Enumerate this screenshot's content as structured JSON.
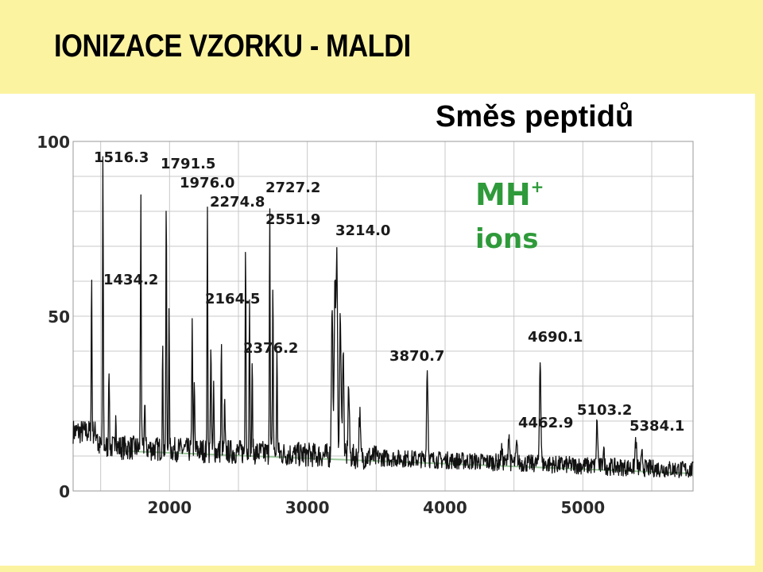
{
  "title": "IONIZACE VZORKU - MALDI",
  "subtitle": "Směs peptidů",
  "chart_data": {
    "type": "line",
    "xlim": [
      1300,
      5800
    ],
    "ylim": [
      0,
      100
    ],
    "x_ticks": [
      2000,
      3000,
      4000,
      5000
    ],
    "y_ticks": [
      0,
      50,
      100
    ],
    "xlabel": "",
    "ylabel": "",
    "grid": true,
    "line_color": "#111111",
    "grid_color": "#c8c8c8",
    "baseline_color": "#9cc79c",
    "annotation": {
      "line1": "MH",
      "sup": "+",
      "line2": "ions",
      "color": "#2e9a3a"
    },
    "peaks": [
      {
        "label": "1434.2",
        "x": 1434.2,
        "y": 58
      },
      {
        "label": "1516.3",
        "x": 1516.3,
        "y": 93
      },
      {
        "label": "1791.5",
        "x": 1791.5,
        "y": 88
      },
      {
        "label": "1976.0",
        "x": 1976.0,
        "y": 85
      },
      {
        "label": "2164.5",
        "x": 2164.5,
        "y": 52
      },
      {
        "label": "2274.8",
        "x": 2274.8,
        "y": 80
      },
      {
        "label": "2376.2",
        "x": 2376.2,
        "y": 42
      },
      {
        "label": "2551.9",
        "x": 2551.9,
        "y": 74
      },
      {
        "label": "2727.2",
        "x": 2727.2,
        "y": 83
      },
      {
        "label": "3214.0",
        "x": 3214.0,
        "y": 71
      },
      {
        "label": "3870.7",
        "x": 3870.7,
        "y": 35
      },
      {
        "label": "4462.9",
        "x": 4462.9,
        "y": 17
      },
      {
        "label": "4690.1",
        "x": 4690.1,
        "y": 39
      },
      {
        "label": "5103.2",
        "x": 5103.2,
        "y": 20
      },
      {
        "label": "5384.1",
        "x": 5384.1,
        "y": 15
      }
    ]
  }
}
